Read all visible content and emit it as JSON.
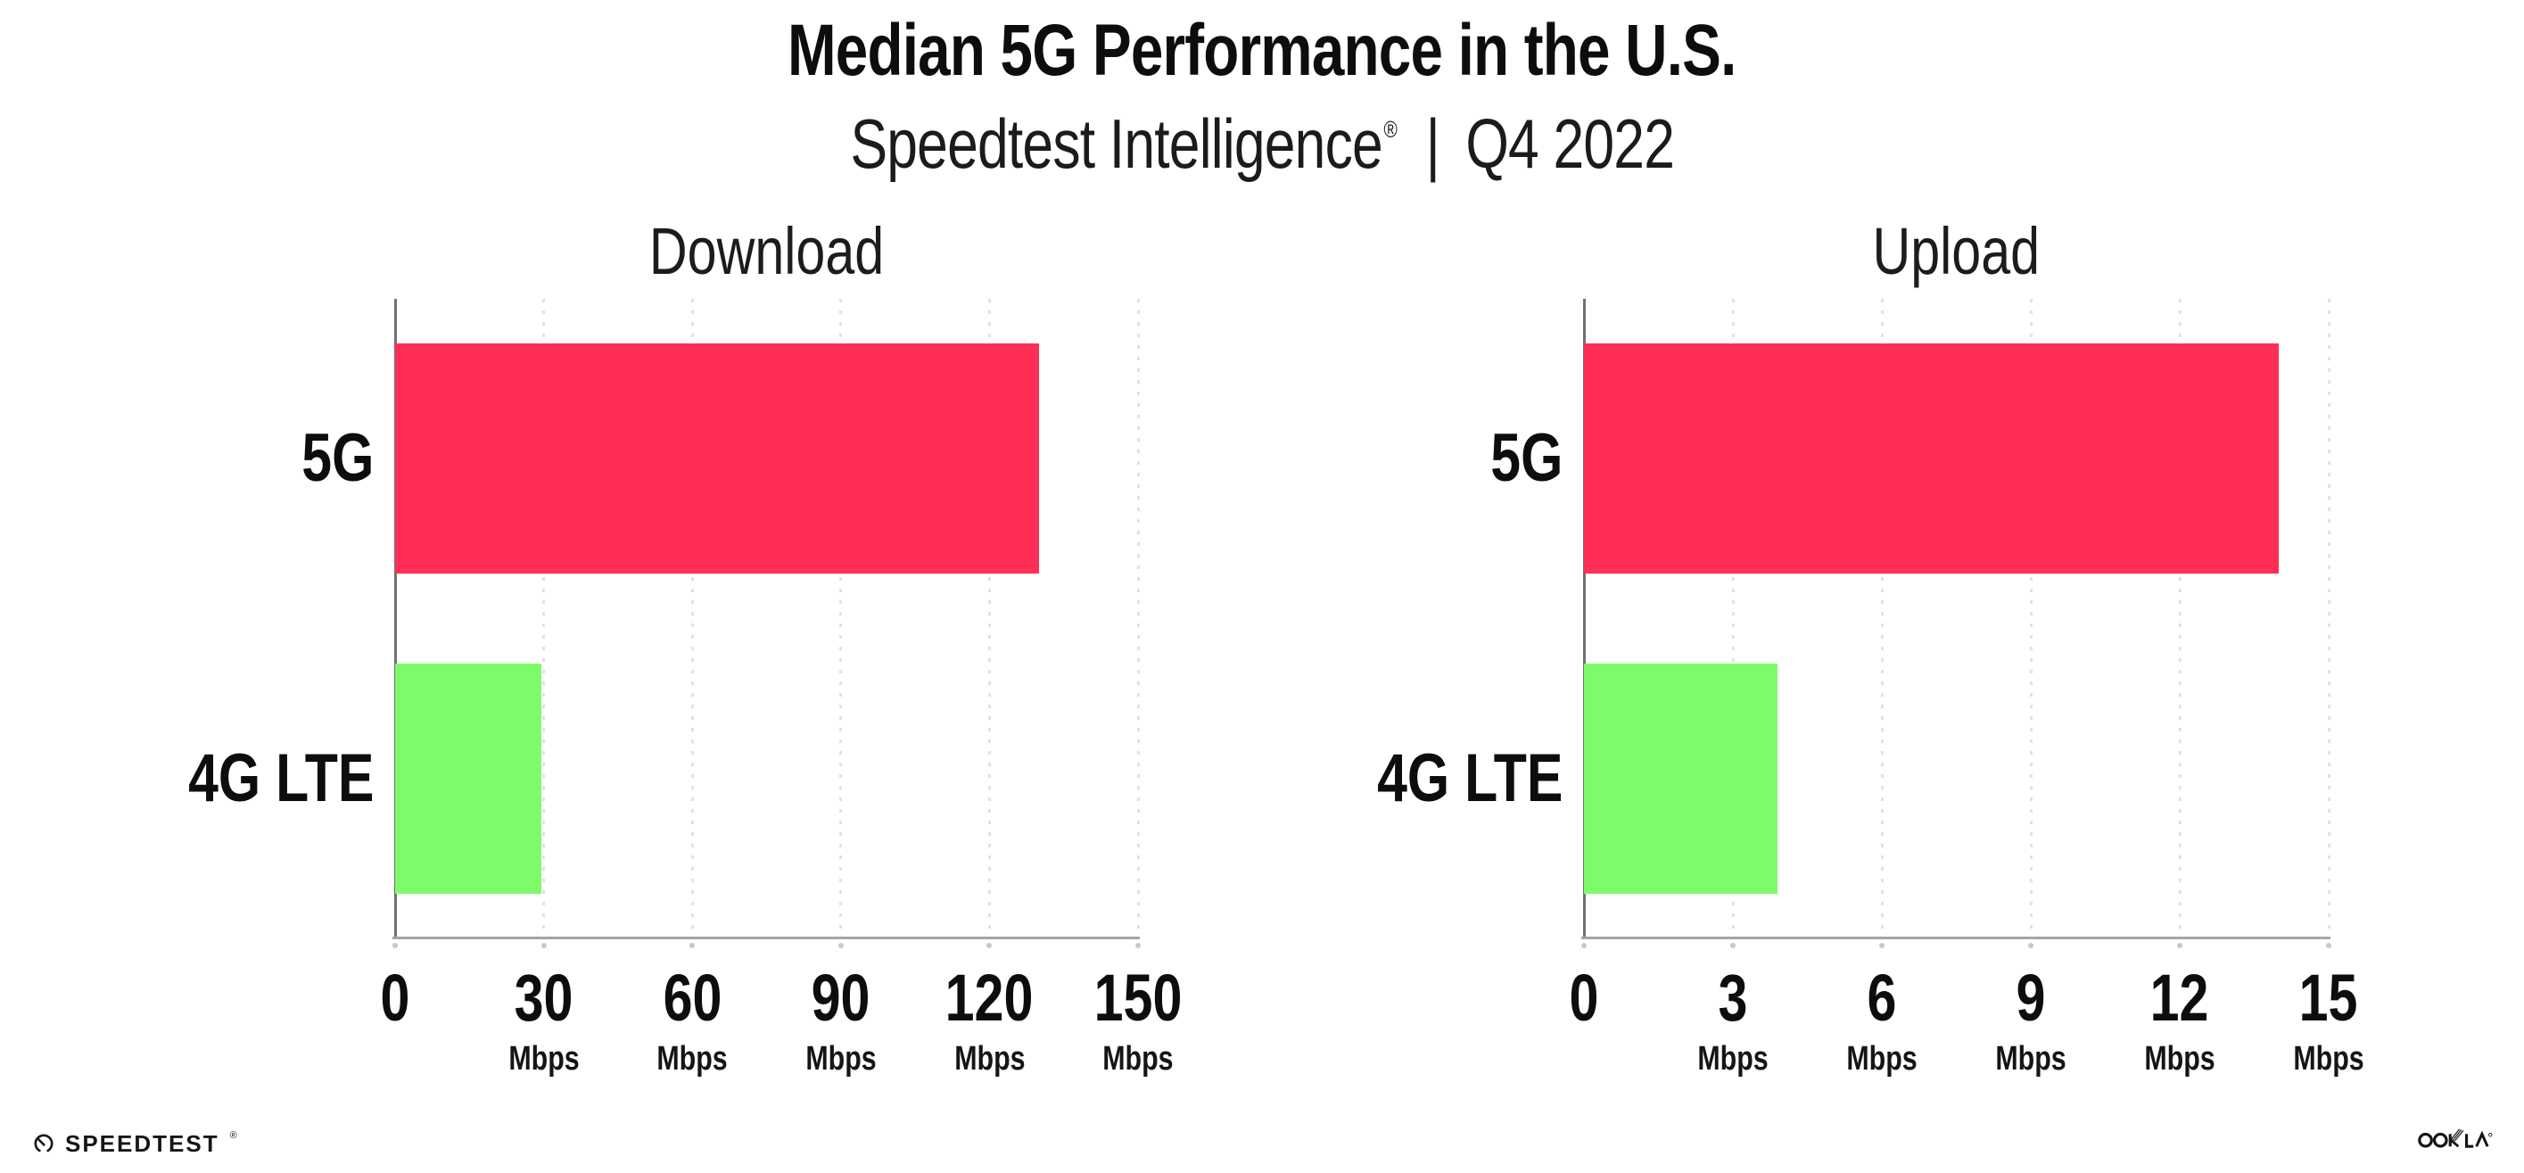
{
  "header": {
    "title": "Median 5G Performance in the U.S.",
    "subtitle_brand": "Speedtest Intelligence",
    "subtitle_registered": "®",
    "subtitle_separator": "|",
    "subtitle_period": "Q4 2022"
  },
  "footer": {
    "speedtest_text": "SPEEDTEST",
    "speedtest_registered": "®",
    "ookla_text": "OOKLA",
    "ookla_registered": "®"
  },
  "colors": {
    "bar_5g": "#ff2e56",
    "bar_4g_lte": "#7dfb68",
    "y_axis": "#70707a",
    "x_axis": "#a4a4ac",
    "grid_dots": "#e1e1e9",
    "text": "#0d0d0d"
  },
  "chart_data": [
    {
      "type": "bar",
      "orientation": "horizontal",
      "title": "Download",
      "categories": [
        "5G",
        "4G LTE"
      ],
      "values": [
        130,
        29.5
      ],
      "unit": "Mbps",
      "xlabel": "",
      "ylabel": "",
      "xlim": [
        0,
        150
      ],
      "xticks": [
        0,
        30,
        60,
        90,
        120,
        150
      ],
      "bar_colors": [
        "#ff2e56",
        "#7dfb68"
      ],
      "grid": "dotted-vertical",
      "legend": "none"
    },
    {
      "type": "bar",
      "orientation": "horizontal",
      "title": "Upload",
      "categories": [
        "5G",
        "4G LTE"
      ],
      "values": [
        14,
        3.9
      ],
      "unit": "Mbps",
      "xlabel": "",
      "ylabel": "",
      "xlim": [
        0,
        15
      ],
      "xticks": [
        0,
        3,
        6,
        9,
        12,
        15
      ],
      "bar_colors": [
        "#ff2e56",
        "#7dfb68"
      ],
      "grid": "dotted-vertical",
      "legend": "none"
    }
  ]
}
